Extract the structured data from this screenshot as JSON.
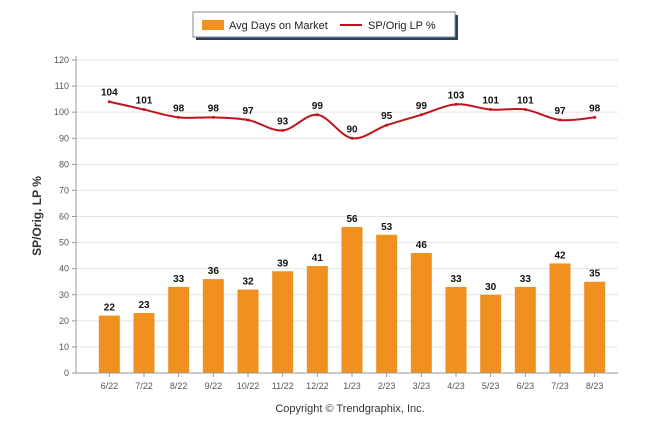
{
  "chart_data": {
    "type": "bar",
    "categories": [
      "6/22",
      "7/22",
      "8/22",
      "9/22",
      "10/22",
      "11/22",
      "12/22",
      "1/23",
      "2/23",
      "3/23",
      "4/23",
      "5/23",
      "6/23",
      "7/23",
      "8/23"
    ],
    "series": [
      {
        "name": "Avg Days on Market",
        "type": "bar",
        "color": "#f0901e",
        "values": [
          22,
          23,
          33,
          36,
          32,
          39,
          41,
          56,
          53,
          46,
          33,
          30,
          33,
          42,
          35
        ]
      },
      {
        "name": "SP/Orig LP %",
        "type": "line",
        "color": "#c0141c",
        "values": [
          104,
          101,
          98,
          98,
          97,
          93,
          99,
          90,
          95,
          99,
          103,
          101,
          101,
          97,
          98
        ]
      }
    ],
    "ylabel": "SP/Orig. LP %",
    "ylim": [
      0,
      120
    ],
    "yticks": [
      0,
      10,
      20,
      30,
      40,
      50,
      60,
      70,
      80,
      90,
      100,
      110,
      120
    ],
    "grid": true,
    "legend_placement": "top-center"
  },
  "footer": {
    "copyright": "Copyright © Trendgraphix, Inc."
  }
}
